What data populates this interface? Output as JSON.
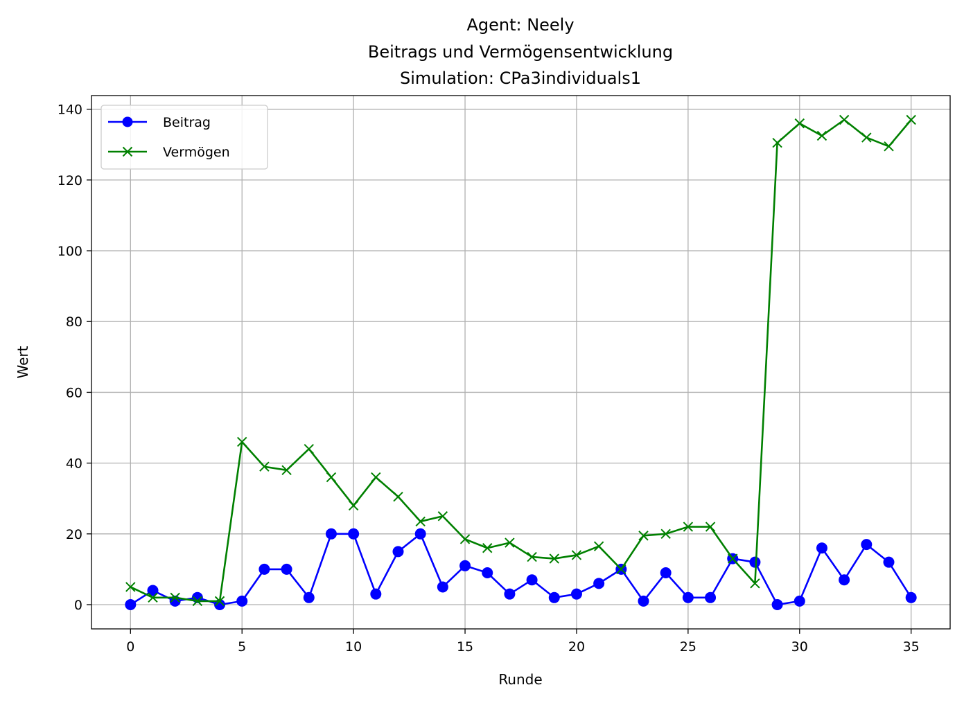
{
  "chart_data": {
    "type": "line",
    "title_lines": [
      "Agent: Neely",
      "Beitrags und Vermögensentwicklung",
      "Simulation: CPa3individuals1"
    ],
    "xlabel": "Runde",
    "ylabel": "Wert",
    "xlim": [
      -1.75,
      36.75
    ],
    "ylim": [
      -6.85,
      143.85
    ],
    "xticks": [
      0,
      5,
      10,
      15,
      20,
      25,
      30,
      35
    ],
    "yticks": [
      0,
      20,
      40,
      60,
      80,
      100,
      120,
      140
    ],
    "grid": true,
    "legend_position": "top-left",
    "series": [
      {
        "name": "Beitrag",
        "color": "#0000ff",
        "marker": "circle",
        "x": [
          0,
          1,
          2,
          3,
          4,
          5,
          6,
          7,
          8,
          9,
          10,
          11,
          12,
          13,
          14,
          15,
          16,
          17,
          18,
          19,
          20,
          21,
          22,
          23,
          24,
          25,
          26,
          27,
          28,
          29,
          30,
          31,
          32,
          33,
          34,
          35
        ],
        "values": [
          0,
          4,
          1,
          2,
          0,
          1,
          10,
          10,
          2,
          20,
          20,
          3,
          15,
          20,
          5,
          11,
          9,
          3,
          7,
          2,
          3,
          6,
          10,
          1,
          9,
          2,
          2,
          13,
          12,
          0,
          1,
          16,
          7,
          17,
          12,
          2
        ]
      },
      {
        "name": "Vermögen",
        "color": "#008000",
        "marker": "x",
        "x": [
          0,
          1,
          2,
          3,
          4,
          5,
          6,
          7,
          8,
          9,
          10,
          11,
          12,
          13,
          14,
          15,
          16,
          17,
          18,
          19,
          20,
          21,
          22,
          23,
          24,
          25,
          26,
          27,
          28,
          29,
          30,
          31,
          32,
          33,
          34,
          35
        ],
        "values": [
          5,
          2,
          2,
          1,
          1,
          46,
          39,
          38,
          44,
          36,
          28,
          36,
          30.5,
          23.5,
          25,
          18.5,
          16,
          17.5,
          13.5,
          13,
          14,
          16.5,
          10,
          19.5,
          20,
          22,
          22,
          13,
          6,
          130.5,
          136,
          132.5,
          137,
          132,
          129.5,
          137
        ]
      }
    ]
  }
}
